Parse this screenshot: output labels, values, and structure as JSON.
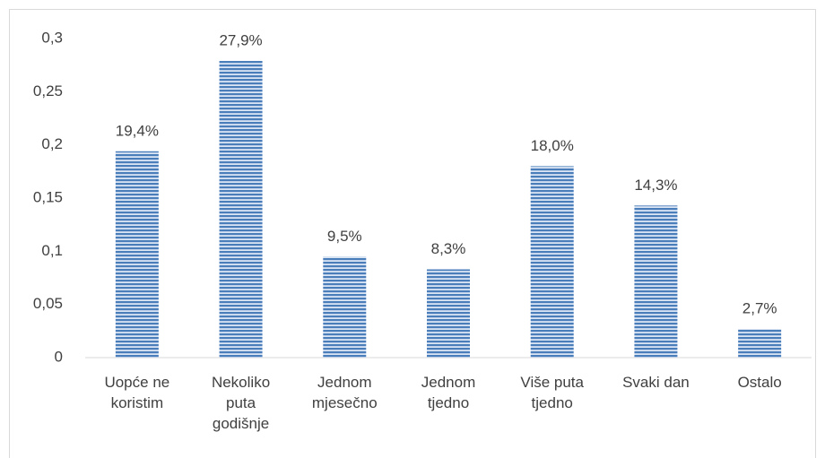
{
  "chart_data": {
    "type": "bar",
    "categories": [
      "Uopće ne koristim",
      "Nekoliko puta godišnje",
      "Jednom mjesečno",
      "Jednom tjedno",
      "Više puta tjedno",
      "Svaki dan",
      "Ostalo"
    ],
    "values": [
      0.194,
      0.279,
      0.095,
      0.083,
      0.18,
      0.143,
      0.027
    ],
    "value_labels": [
      "19,4%",
      "27,9%",
      "9,5%",
      "8,3%",
      "18,0%",
      "14,3%",
      "2,7%"
    ],
    "color": "#4a7ebb",
    "ylim": [
      0,
      0.3
    ],
    "yticks": [
      0,
      {
        "value": 0.05,
        "label": "0,05"
      },
      {
        "value": 0.1,
        "label": "0,1"
      },
      {
        "value": 0.15,
        "label": "0,15"
      },
      {
        "value": 0.2,
        "label": "0,2"
      },
      {
        "value": 0.25,
        "label": "0,25"
      },
      {
        "value": 0.3,
        "label": "0,3"
      }
    ],
    "grid": false
  }
}
